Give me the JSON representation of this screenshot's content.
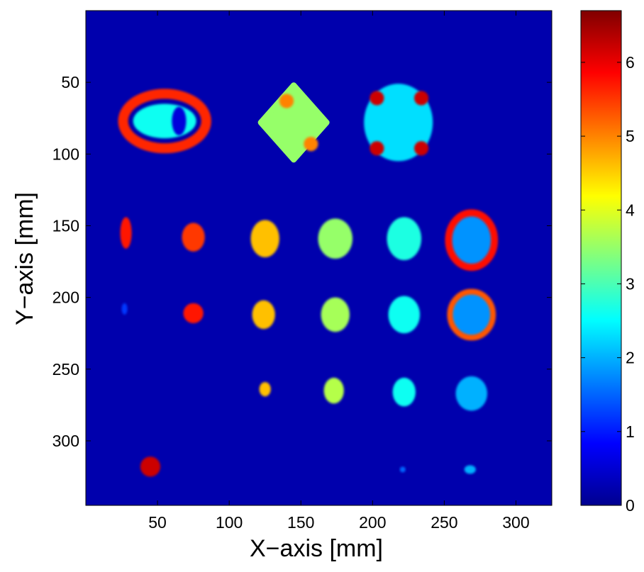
{
  "chart_data": {
    "type": "heatmap",
    "xlabel": "X−axis [mm]",
    "ylabel": "Y−axis [mm]",
    "xlim": [
      0,
      325
    ],
    "ylim": [
      0,
      345
    ],
    "y_direction": "reversed",
    "xticks": [
      50,
      100,
      150,
      200,
      250,
      300
    ],
    "yticks": [
      50,
      100,
      150,
      200,
      250,
      300
    ],
    "colormap": "jet",
    "colorbar": {
      "range": [
        0,
        6.7
      ],
      "ticks": [
        0,
        1,
        2,
        3,
        4,
        5,
        6
      ]
    },
    "background_value": 0.3,
    "grid": false,
    "regions": [
      {
        "shape": "ellipse",
        "cx": 55,
        "cy": 77,
        "rx": 22,
        "ry": 12,
        "rotate": 0,
        "value": 2.6
      },
      {
        "shape": "diamond",
        "cx": 145,
        "cy": 78,
        "rx": 23,
        "ry": 26,
        "value": 3.5
      },
      {
        "shape": "circle",
        "cx": 218,
        "cy": 78,
        "rx": 24,
        "ry": 27,
        "value": 2.3
      },
      {
        "shape": "ellipse",
        "cx": 28,
        "cy": 155,
        "rx": 4,
        "ry": 11,
        "value": 5.7
      },
      {
        "shape": "ellipse",
        "cx": 75,
        "cy": 158,
        "rx": 8,
        "ry": 10,
        "value": 5.5
      },
      {
        "shape": "ellipse",
        "cx": 125,
        "cy": 159,
        "rx": 10,
        "ry": 13,
        "value": 4.6
      },
      {
        "shape": "ellipse",
        "cx": 174,
        "cy": 159,
        "rx": 12,
        "ry": 14,
        "value": 3.5
      },
      {
        "shape": "ellipse",
        "cx": 222,
        "cy": 159,
        "rx": 12,
        "ry": 15,
        "value": 2.7
      },
      {
        "shape": "ellipse",
        "cx": 269,
        "cy": 160,
        "rx": 16,
        "ry": 19,
        "value": 1.8
      },
      {
        "shape": "ellipse",
        "cx": 27,
        "cy": 208,
        "rx": 2,
        "ry": 4,
        "value": 1.2
      },
      {
        "shape": "ellipse",
        "cx": 75,
        "cy": 211,
        "rx": 7,
        "ry": 7,
        "value": 5.7
      },
      {
        "shape": "ellipse",
        "cx": 124,
        "cy": 212,
        "rx": 8,
        "ry": 10,
        "value": 4.6
      },
      {
        "shape": "ellipse",
        "cx": 174,
        "cy": 212,
        "rx": 10,
        "ry": 12,
        "value": 3.6
      },
      {
        "shape": "ellipse",
        "cx": 222,
        "cy": 212,
        "rx": 11,
        "ry": 13,
        "value": 2.6
      },
      {
        "shape": "ellipse",
        "cx": 269,
        "cy": 212,
        "rx": 15,
        "ry": 16,
        "value": 1.8
      },
      {
        "shape": "ellipse",
        "cx": 125,
        "cy": 264,
        "rx": 4,
        "ry": 5,
        "value": 4.6
      },
      {
        "shape": "ellipse",
        "cx": 173,
        "cy": 265,
        "rx": 7,
        "ry": 9,
        "value": 3.7
      },
      {
        "shape": "ellipse",
        "cx": 222,
        "cy": 266,
        "rx": 8,
        "ry": 10,
        "value": 2.6
      },
      {
        "shape": "ellipse",
        "cx": 269,
        "cy": 267,
        "rx": 11,
        "ry": 12,
        "value": 2.0
      },
      {
        "shape": "ellipse",
        "cx": 45,
        "cy": 318,
        "rx": 7,
        "ry": 7,
        "value": 6.2
      },
      {
        "shape": "ellipse",
        "cx": 221,
        "cy": 320,
        "rx": 2,
        "ry": 2,
        "value": 1.5
      },
      {
        "shape": "ellipse",
        "cx": 268,
        "cy": 320,
        "rx": 4,
        "ry": 3,
        "value": 2.0
      }
    ],
    "rings": [
      {
        "cx": 55,
        "cy": 77,
        "rx": 29,
        "ry": 19,
        "width": 7,
        "value": 5.6
      },
      {
        "cx": 269,
        "cy": 160,
        "rx": 16,
        "ry": 19,
        "width": 5,
        "value": 5.8
      },
      {
        "cx": 269,
        "cy": 212,
        "rx": 15,
        "ry": 16,
        "width": 4,
        "value": 5.3
      }
    ],
    "hotspots": [
      {
        "cx": 65,
        "cy": 77,
        "rx": 5,
        "ry": 10,
        "value": 0.6
      },
      {
        "cx": 140,
        "cy": 63,
        "rx": 5,
        "ry": 5,
        "value": 5.0
      },
      {
        "cx": 157,
        "cy": 93,
        "rx": 5,
        "ry": 5,
        "value": 5.0
      },
      {
        "cx": 203,
        "cy": 61,
        "rx": 5,
        "ry": 5,
        "value": 6.2
      },
      {
        "cx": 234,
        "cy": 61,
        "rx": 5,
        "ry": 5,
        "value": 6.2
      },
      {
        "cx": 203,
        "cy": 96,
        "rx": 5,
        "ry": 5,
        "value": 6.2
      },
      {
        "cx": 234,
        "cy": 96,
        "rx": 5,
        "ry": 5,
        "value": 6.2
      }
    ]
  }
}
